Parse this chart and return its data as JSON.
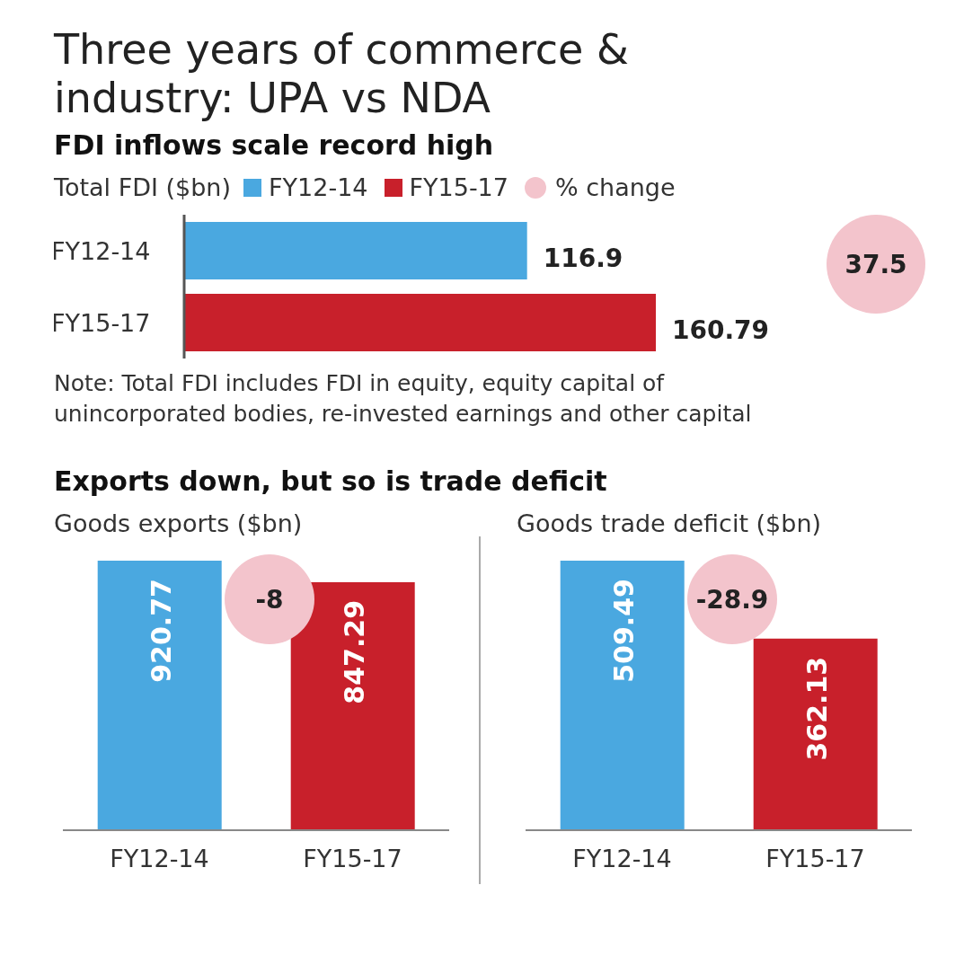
{
  "chart_data": [
    {
      "type": "bar",
      "title": "Three years of commerce & industry: UPA vs NDA",
      "subtitle": "FDI inflows scale record high",
      "xlabel": "Total FDI  ($bn)",
      "orientation": "horizontal",
      "stacked": true,
      "categories": [
        "FY12-14",
        "FY15-17"
      ],
      "series": [
        {
          "name": "FY12-14",
          "color": "#4aa8e0",
          "values": [
            116.9,
            null
          ]
        },
        {
          "name": "FY15-17",
          "color": "#c8202b",
          "values": [
            null,
            160.79
          ]
        }
      ],
      "data_labels": true,
      "legend": "top",
      "annotations": [
        "37.5",
        "% change",
        "Note: Total FDI includes FDI in equity, equity capital of unincorporated bodies, re-invested earnings and other capital"
      ]
    },
    {
      "type": "bar",
      "title": "Exports down, but so is trade deficit",
      "ylabel": "Goods exports ($bn)",
      "categories": [
        "FY12-14",
        "FY15-17"
      ],
      "values": [
        920.77,
        847.29
      ],
      "colors": [
        "#4aa8e0",
        "#c8202b"
      ],
      "data_labels": true,
      "annotations": [
        "-8"
      ]
    },
    {
      "type": "bar",
      "ylabel": "Goods trade deficit ($bn)",
      "categories": [
        "FY12-14",
        "FY15-17"
      ],
      "values": [
        509.49,
        362.13
      ],
      "colors": [
        "#4aa8e0",
        "#c8202b"
      ],
      "data_labels": true,
      "annotations": [
        "-28.9"
      ]
    }
  ]
}
